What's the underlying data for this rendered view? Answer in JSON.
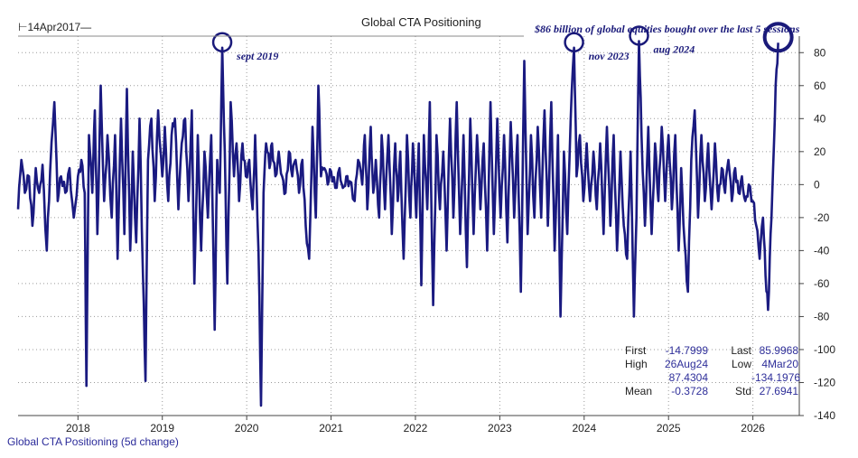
{
  "header": {
    "start_label": "⊢14Apr2017—",
    "title": "Global CTA Positioning",
    "note": "$86 billion of global equities bought over the last 5 sessions"
  },
  "footer": {
    "series_label": "Global CTA Positioning (5d change)"
  },
  "stats": {
    "first_label": "First",
    "first_value": "-14.7999",
    "last_label": "Last",
    "last_value": "85.9968",
    "high_label": "High",
    "high_date": "26Aug24",
    "high_value": "87.4304",
    "low_label": "Low",
    "low_date": "4Mar20",
    "low_value": "-134.1976",
    "mean_label": "Mean",
    "mean_value": "-0.3728",
    "std_label": "Std",
    "std_value": "27.6941"
  },
  "colors": {
    "line": "#1a1a80",
    "grid": "#9a9a9a",
    "annotation": "#1a1a7a"
  },
  "chart_data": {
    "type": "line",
    "title": "Global CTA Positioning",
    "series_name": "Global CTA Positioning (5d change)",
    "ylim": [
      -140,
      90
    ],
    "yticks": [
      -140,
      -120,
      -100,
      -80,
      -60,
      -40,
      -20,
      0,
      20,
      40,
      60,
      80
    ],
    "xlim": [
      2017.29,
      2026.55
    ],
    "xticks": [
      2018,
      2019,
      2020,
      2021,
      2022,
      2023,
      2024,
      2025,
      2026
    ],
    "grid": true,
    "anchors": [
      [
        2017.29,
        -15
      ],
      [
        2017.33,
        15
      ],
      [
        2017.37,
        -5
      ],
      [
        2017.42,
        5
      ],
      [
        2017.46,
        -25
      ],
      [
        2017.5,
        10
      ],
      [
        2017.54,
        -5
      ],
      [
        2017.58,
        12
      ],
      [
        2017.63,
        -40
      ],
      [
        2017.67,
        8
      ],
      [
        2017.72,
        50
      ],
      [
        2017.76,
        -10
      ],
      [
        2017.8,
        5
      ],
      [
        2017.85,
        -5
      ],
      [
        2017.9,
        10
      ],
      [
        2017.95,
        -20
      ],
      [
        2018.0,
        5
      ],
      [
        2018.04,
        15
      ],
      [
        2018.08,
        -5
      ],
      [
        2018.1,
        -122
      ],
      [
        2018.13,
        30
      ],
      [
        2018.17,
        -5
      ],
      [
        2018.2,
        45
      ],
      [
        2018.23,
        -30
      ],
      [
        2018.27,
        60
      ],
      [
        2018.31,
        -10
      ],
      [
        2018.35,
        30
      ],
      [
        2018.4,
        -20
      ],
      [
        2018.44,
        30
      ],
      [
        2018.47,
        -45
      ],
      [
        2018.51,
        40
      ],
      [
        2018.55,
        -30
      ],
      [
        2018.58,
        58
      ],
      [
        2018.62,
        -40
      ],
      [
        2018.65,
        20
      ],
      [
        2018.69,
        -35
      ],
      [
        2018.73,
        40
      ],
      [
        2018.77,
        -55
      ],
      [
        2018.8,
        -119
      ],
      [
        2018.83,
        15
      ],
      [
        2018.87,
        40
      ],
      [
        2018.91,
        -10
      ],
      [
        2018.95,
        45
      ],
      [
        2019.0,
        5
      ],
      [
        2019.03,
        35
      ],
      [
        2019.07,
        -10
      ],
      [
        2019.11,
        30
      ],
      [
        2019.15,
        40
      ],
      [
        2019.19,
        -15
      ],
      [
        2019.23,
        25
      ],
      [
        2019.27,
        40
      ],
      [
        2019.31,
        -10
      ],
      [
        2019.35,
        45
      ],
      [
        2019.38,
        -60
      ],
      [
        2019.42,
        30
      ],
      [
        2019.46,
        -40
      ],
      [
        2019.5,
        20
      ],
      [
        2019.54,
        -20
      ],
      [
        2019.58,
        30
      ],
      [
        2019.62,
        -88
      ],
      [
        2019.65,
        15
      ],
      [
        2019.68,
        -5
      ],
      [
        2019.71,
        83
      ],
      [
        2019.74,
        20
      ],
      [
        2019.77,
        -60
      ],
      [
        2019.81,
        50
      ],
      [
        2019.85,
        5
      ],
      [
        2019.88,
        25
      ],
      [
        2019.91,
        -10
      ],
      [
        2019.95,
        25
      ],
      [
        2019.99,
        5
      ],
      [
        2020.03,
        15
      ],
      [
        2020.07,
        -15
      ],
      [
        2020.1,
        30
      ],
      [
        2020.14,
        -40
      ],
      [
        2020.17,
        -134
      ],
      [
        2020.2,
        -5
      ],
      [
        2020.23,
        25
      ],
      [
        2020.27,
        10
      ],
      [
        2020.3,
        25
      ],
      [
        2020.34,
        5
      ],
      [
        2020.38,
        20
      ],
      [
        2020.42,
        5
      ],
      [
        2020.46,
        -5
      ],
      [
        2020.5,
        20
      ],
      [
        2020.54,
        5
      ],
      [
        2020.58,
        15
      ],
      [
        2020.62,
        -5
      ],
      [
        2020.66,
        15
      ],
      [
        2020.7,
        -25
      ],
      [
        2020.74,
        -45
      ],
      [
        2020.78,
        35
      ],
      [
        2020.82,
        -20
      ],
      [
        2020.85,
        60
      ],
      [
        2020.88,
        5
      ],
      [
        2020.92,
        10
      ],
      [
        2020.96,
        0
      ],
      [
        2021.0,
        8
      ],
      [
        2021.05,
        -2
      ],
      [
        2021.1,
        10
      ],
      [
        2021.14,
        -2
      ],
      [
        2021.18,
        5
      ],
      [
        2021.22,
        2
      ],
      [
        2021.28,
        -10
      ],
      [
        2021.32,
        15
      ],
      [
        2021.37,
        0
      ],
      [
        2021.4,
        30
      ],
      [
        2021.43,
        -15
      ],
      [
        2021.47,
        35
      ],
      [
        2021.5,
        -5
      ],
      [
        2021.53,
        15
      ],
      [
        2021.57,
        -20
      ],
      [
        2021.6,
        30
      ],
      [
        2021.64,
        -15
      ],
      [
        2021.68,
        30
      ],
      [
        2021.72,
        -30
      ],
      [
        2021.76,
        25
      ],
      [
        2021.79,
        -10
      ],
      [
        2021.82,
        20
      ],
      [
        2021.86,
        -45
      ],
      [
        2021.9,
        30
      ],
      [
        2021.94,
        -20
      ],
      [
        2021.97,
        25
      ],
      [
        2022.01,
        -20
      ],
      [
        2022.04,
        25
      ],
      [
        2022.07,
        -61
      ],
      [
        2022.1,
        30
      ],
      [
        2022.14,
        -15
      ],
      [
        2022.17,
        50
      ],
      [
        2022.21,
        -73
      ],
      [
        2022.25,
        30
      ],
      [
        2022.29,
        -15
      ],
      [
        2022.33,
        20
      ],
      [
        2022.37,
        -40
      ],
      [
        2022.41,
        40
      ],
      [
        2022.45,
        -20
      ],
      [
        2022.49,
        50
      ],
      [
        2022.53,
        -30
      ],
      [
        2022.57,
        30
      ],
      [
        2022.61,
        -50
      ],
      [
        2022.65,
        40
      ],
      [
        2022.69,
        -30
      ],
      [
        2022.73,
        30
      ],
      [
        2022.77,
        -15
      ],
      [
        2022.81,
        25
      ],
      [
        2022.85,
        -40
      ],
      [
        2022.89,
        50
      ],
      [
        2022.93,
        -30
      ],
      [
        2022.97,
        40
      ],
      [
        2023.01,
        -20
      ],
      [
        2023.05,
        30
      ],
      [
        2023.09,
        -35
      ],
      [
        2023.13,
        38
      ],
      [
        2023.17,
        -20
      ],
      [
        2023.21,
        30
      ],
      [
        2023.25,
        -65
      ],
      [
        2023.29,
        75
      ],
      [
        2023.33,
        -30
      ],
      [
        2023.37,
        30
      ],
      [
        2023.41,
        -20
      ],
      [
        2023.45,
        35
      ],
      [
        2023.49,
        -20
      ],
      [
        2023.53,
        45
      ],
      [
        2023.57,
        -25
      ],
      [
        2023.61,
        50
      ],
      [
        2023.65,
        -40
      ],
      [
        2023.69,
        30
      ],
      [
        2023.72,
        -80
      ],
      [
        2023.76,
        20
      ],
      [
        2023.8,
        -30
      ],
      [
        2023.84,
        40
      ],
      [
        2023.88,
        83
      ],
      [
        2023.91,
        5
      ],
      [
        2023.95,
        30
      ],
      [
        2023.99,
        -10
      ],
      [
        2024.03,
        25
      ],
      [
        2024.07,
        -10
      ],
      [
        2024.11,
        20
      ],
      [
        2024.15,
        -15
      ],
      [
        2024.19,
        25
      ],
      [
        2024.23,
        -30
      ],
      [
        2024.27,
        35
      ],
      [
        2024.31,
        -25
      ],
      [
        2024.35,
        30
      ],
      [
        2024.39,
        -40
      ],
      [
        2024.43,
        20
      ],
      [
        2024.47,
        -25
      ],
      [
        2024.51,
        -45
      ],
      [
        2024.55,
        20
      ],
      [
        2024.59,
        -80
      ],
      [
        2024.62,
        -20
      ],
      [
        2024.65,
        87
      ],
      [
        2024.68,
        30
      ],
      [
        2024.72,
        -25
      ],
      [
        2024.76,
        35
      ],
      [
        2024.8,
        -30
      ],
      [
        2024.84,
        25
      ],
      [
        2024.88,
        -10
      ],
      [
        2024.92,
        35
      ],
      [
        2024.96,
        -10
      ],
      [
        2025.0,
        30
      ],
      [
        2025.04,
        -15
      ],
      [
        2025.08,
        30
      ],
      [
        2025.12,
        -40
      ],
      [
        2025.15,
        10
      ],
      [
        2025.19,
        -35
      ],
      [
        2025.23,
        -65
      ],
      [
        2025.27,
        15
      ],
      [
        2025.31,
        45
      ],
      [
        2025.35,
        -20
      ],
      [
        2025.39,
        30
      ],
      [
        2025.43,
        -10
      ],
      [
        2025.47,
        25
      ],
      [
        2025.51,
        -15
      ],
      [
        2025.55,
        25
      ],
      [
        2025.59,
        -10
      ],
      [
        2025.63,
        10
      ],
      [
        2025.67,
        -5
      ],
      [
        2025.71,
        15
      ],
      [
        2025.75,
        -10
      ],
      [
        2025.79,
        10
      ],
      [
        2025.83,
        -5
      ],
      [
        2025.87,
        5
      ],
      [
        2025.91,
        -10
      ],
      [
        2025.95,
        0
      ],
      [
        2026.0,
        -10
      ],
      [
        2026.04,
        -25
      ],
      [
        2026.08,
        -45
      ],
      [
        2026.12,
        -20
      ],
      [
        2026.15,
        -55
      ],
      [
        2026.18,
        -76
      ],
      [
        2026.21,
        -30
      ],
      [
        2026.24,
        10
      ],
      [
        2026.27,
        60
      ],
      [
        2026.3,
        86
      ]
    ],
    "annotations": [
      {
        "text": "sept 2019",
        "x": 2019.71,
        "y": 83
      },
      {
        "text": "nov 2023",
        "x": 2023.88,
        "y": 83
      },
      {
        "text": "aug 2024",
        "x": 2024.65,
        "y": 87
      },
      {
        "text": "",
        "x": 2026.3,
        "y": 86
      }
    ]
  }
}
